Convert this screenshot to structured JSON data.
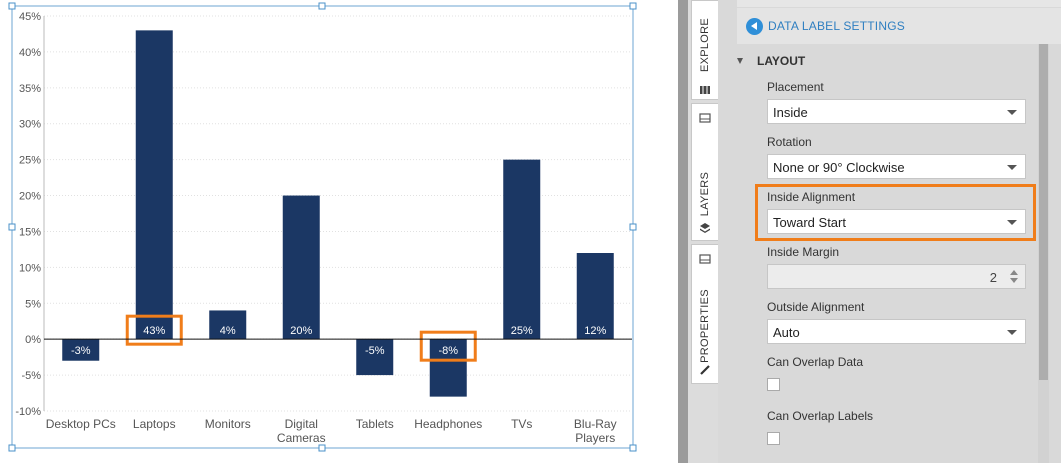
{
  "chart_data": {
    "type": "bar",
    "categories": [
      "Desktop PCs",
      "Laptops",
      "Monitors",
      "Digital Cameras",
      "Tablets",
      "Headphones",
      "TVs",
      "Blu-Ray Players"
    ],
    "category_label_lines": [
      [
        "Desktop PCs"
      ],
      [
        "Laptops"
      ],
      [
        "Monitors"
      ],
      [
        "Digital",
        "Cameras"
      ],
      [
        "Tablets"
      ],
      [
        "Headphones"
      ],
      [
        "TVs"
      ],
      [
        "Blu-Ray",
        "Players"
      ]
    ],
    "values": [
      -3,
      43,
      4,
      20,
      -5,
      -8,
      25,
      12
    ],
    "data_labels": [
      "-3%",
      "43%",
      "4%",
      "20%",
      "-5%",
      "-8%",
      "25%",
      "12%"
    ],
    "y_ticks": [
      45,
      40,
      35,
      30,
      25,
      20,
      15,
      10,
      5,
      0,
      -5,
      -10
    ],
    "y_tick_labels": [
      "45%",
      "40%",
      "35%",
      "30%",
      "25%",
      "20%",
      "15%",
      "10%",
      "5%",
      "0%",
      "-5%",
      "-10%"
    ],
    "ylim": [
      -10,
      45
    ],
    "grid": true,
    "bar_color": "#1b3764",
    "label_color": "#ffffff",
    "highlighted_labels": [
      "Laptops",
      "Headphones"
    ],
    "highlight_color": "#f07d1a"
  },
  "side_tabs": {
    "explore": "EXPLORE",
    "layers": "LAYERS",
    "properties": "PROPERTIES"
  },
  "panel": {
    "header": "DATA LABEL SETTINGS",
    "header_icon": "back-arrow-icon",
    "section": "LAYOUT",
    "placement": {
      "label": "Placement",
      "value": "Inside"
    },
    "rotation": {
      "label": "Rotation",
      "value": "None or 90° Clockwise"
    },
    "inside_alignment": {
      "label": "Inside Alignment",
      "value": "Toward Start"
    },
    "inside_margin": {
      "label": "Inside Margin",
      "value": "2"
    },
    "outside_alignment": {
      "label": "Outside Alignment",
      "value": "Auto"
    },
    "can_overlap_data": {
      "label": "Can Overlap Data",
      "checked": false
    },
    "can_overlap_labels": {
      "label": "Can Overlap Labels",
      "checked": false
    },
    "highlight_color": "#f07d1a"
  }
}
